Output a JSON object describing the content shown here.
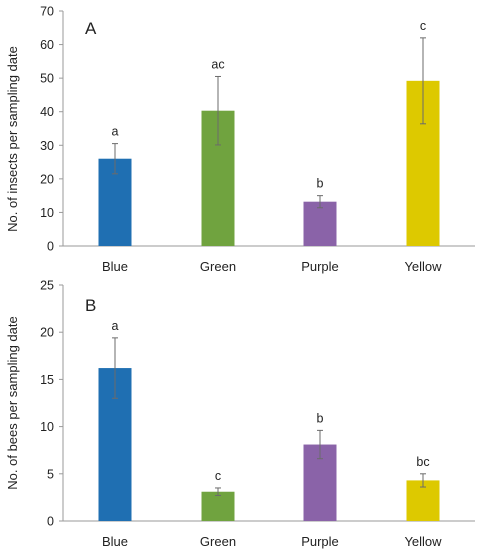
{
  "chart_data": [
    {
      "type": "bar",
      "panel_label": "A",
      "ylabel": "No. of insects per sampling date",
      "categories": [
        "Blue",
        "Green",
        "Purple",
        "Yellow"
      ],
      "values": [
        26,
        40.3,
        13.2,
        49.2
      ],
      "error": [
        4.5,
        10.2,
        1.8,
        12.8
      ],
      "letters": [
        "a",
        "ac",
        "b",
        "c"
      ],
      "colors": [
        "#1f6fb2",
        "#70a33f",
        "#8a63a8",
        "#ddc900"
      ],
      "ylim": [
        0,
        70
      ],
      "yticks": [
        0,
        10,
        20,
        30,
        40,
        50,
        60,
        70
      ],
      "grid": false
    },
    {
      "type": "bar",
      "panel_label": "B",
      "ylabel": "No. of bees per sampling date",
      "categories": [
        "Blue",
        "Green",
        "Purple",
        "Yellow"
      ],
      "values": [
        16.2,
        3.1,
        8.1,
        4.3
      ],
      "error": [
        3.2,
        0.4,
        1.5,
        0.7
      ],
      "letters": [
        "a",
        "c",
        "b",
        "bc"
      ],
      "colors": [
        "#1f6fb2",
        "#70a33f",
        "#8a63a8",
        "#ddc900"
      ],
      "ylim": [
        0,
        25
      ],
      "yticks": [
        0,
        5,
        10,
        15,
        20,
        25
      ],
      "grid": false
    }
  ]
}
